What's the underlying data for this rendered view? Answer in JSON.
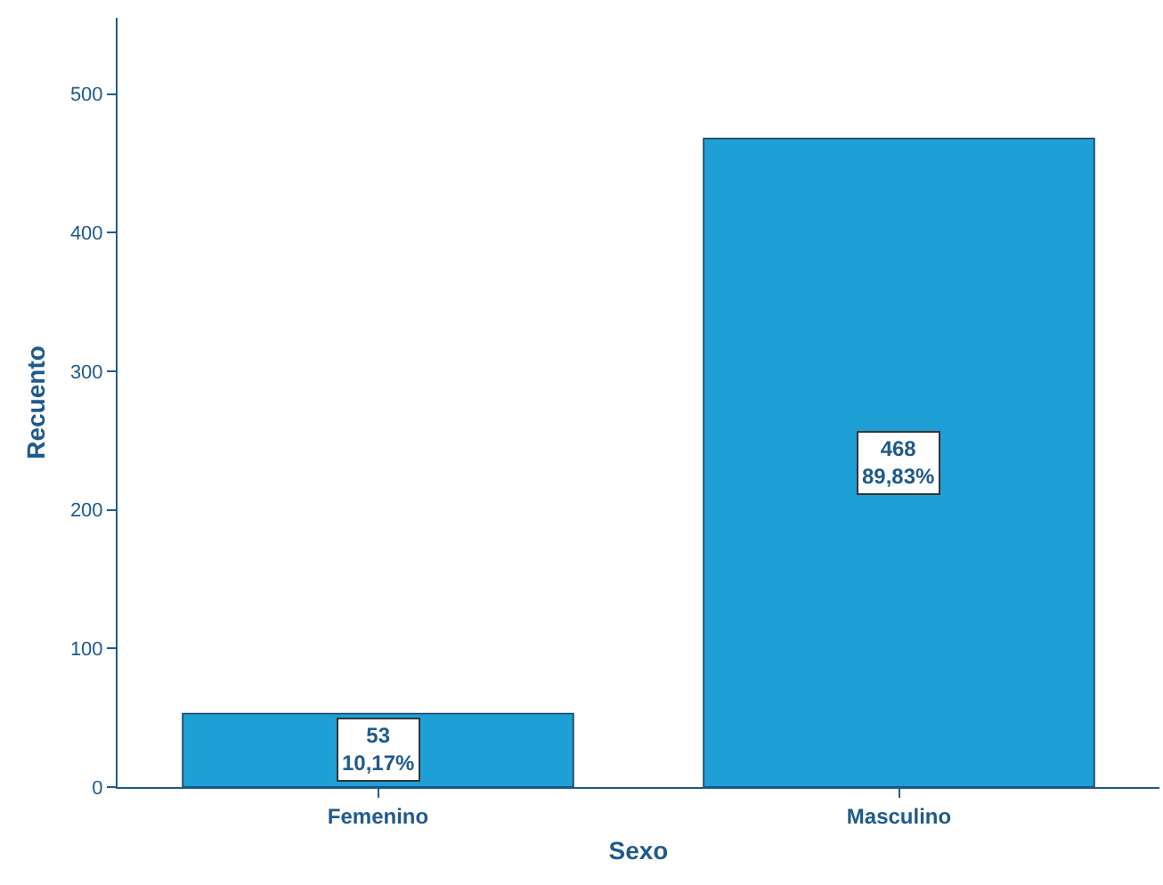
{
  "chart_data": {
    "type": "bar",
    "xlabel": "Sexo",
    "ylabel": "Recuento",
    "categories": [
      "Femenino",
      "Masculino"
    ],
    "values": [
      53,
      468
    ],
    "value_labels": [
      "53\n10,17%",
      "468\n89,83%"
    ],
    "color": "#1e9fd6",
    "ylim": [
      0,
      555
    ],
    "yticks": [
      0,
      100,
      200,
      300,
      400,
      500
    ],
    "legend": false
  }
}
